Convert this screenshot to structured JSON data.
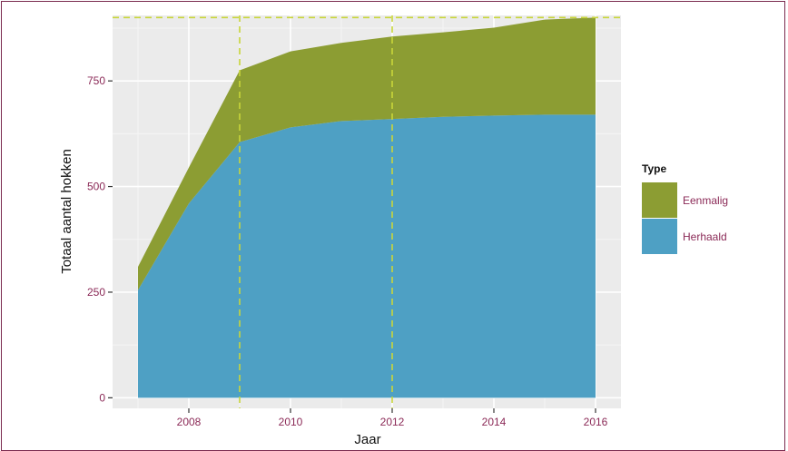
{
  "chart_data": {
    "type": "area",
    "stacked": true,
    "title": "",
    "xlabel": "Jaar",
    "ylabel": "Totaal aantal hokken",
    "x": [
      2007,
      2008,
      2009,
      2010,
      2011,
      2012,
      2013,
      2014,
      2015,
      2016
    ],
    "xlim": [
      2006.5,
      2016.5
    ],
    "ylim": [
      -25,
      905
    ],
    "x_ticks": [
      2008,
      2010,
      2012,
      2014,
      2016
    ],
    "x_tick_labels": [
      "2008",
      "2010",
      "2012",
      "2014",
      "2016"
    ],
    "y_ticks": [
      0,
      250,
      500,
      750
    ],
    "y_tick_labels": [
      "0",
      "250",
      "500",
      "750"
    ],
    "grid": true,
    "series": [
      {
        "name": "Herhaald",
        "color": "#4ea0c4",
        "values": [
          255,
          460,
          605,
          640,
          655,
          660,
          665,
          668,
          670,
          670
        ]
      },
      {
        "name": "Eenmalig",
        "color": "#8c9d33",
        "values": [
          55,
          85,
          170,
          180,
          185,
          195,
          200,
          208,
          225,
          230
        ]
      }
    ],
    "reference_lines": {
      "color": "#c8d63a",
      "vertical_x": [
        2009,
        2012
      ],
      "horizontal_y": [
        900
      ]
    },
    "legend": {
      "title": "Type",
      "placement": "right",
      "entries": [
        {
          "label": "Eenmalig",
          "color": "#8c9d33"
        },
        {
          "label": "Herhaald",
          "color": "#4ea0c4"
        }
      ]
    }
  }
}
